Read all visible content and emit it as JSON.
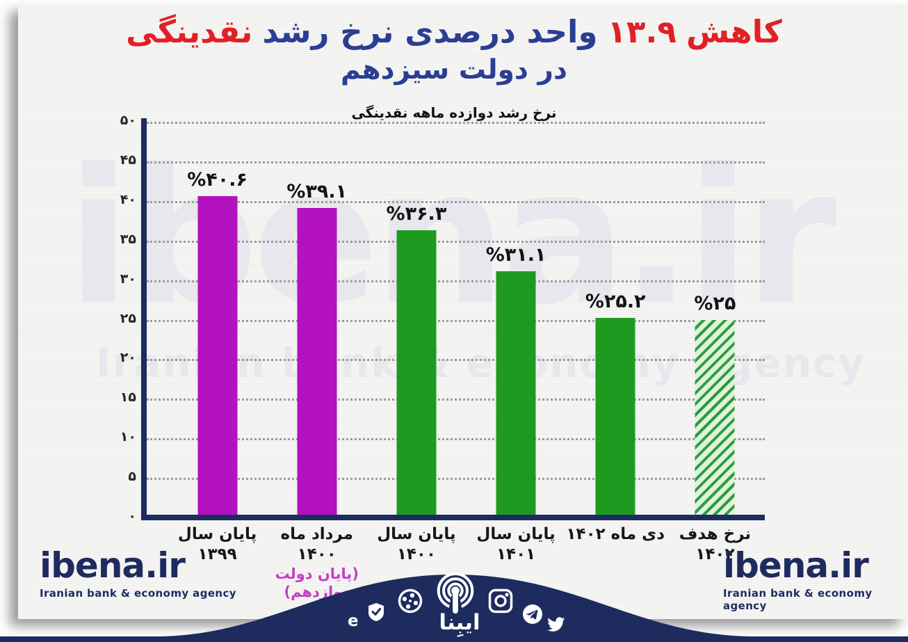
{
  "colors": {
    "title_red": "#e12026",
    "title_blue": "#2b3e94",
    "bar_magenta": "#b411c0",
    "bar_green": "#1f9a21",
    "hatch_stripe_green": "#2f9c3e",
    "hatch_bg_green": "#dff3dc",
    "brand_navy": "#1d2b5e",
    "sub_label_magenta": "#c33fc3",
    "gridline_gray": "#9b9b9b",
    "watermark_gray": "#e7e7ed"
  },
  "title": {
    "part1": "کاهش",
    "part2": "۱۳.۹",
    "part3": "واحد درصدی نرخ رشد",
    "part4": "نقدینگی",
    "line2": "در دولت سیزدهم"
  },
  "subtitle": "نرخ رشد دوازده ماهه نقدینگی",
  "watermark": {
    "line1": "ibena.ir",
    "line2": "Iranian bank & economy agency"
  },
  "footer": {
    "left_logo": "ibena.ir",
    "left_tagline": "Iranian bank & economy agency",
    "right_logo": "ibena.ir",
    "right_tagline": "Iranian bank & economy agency",
    "brand_fa": "ایبِنا",
    "social_icons": [
      "eitaa",
      "bale",
      "aparat",
      "ibena-broadcast",
      "instagram",
      "telegram",
      "twitter"
    ]
  },
  "chart_data": {
    "type": "bar",
    "title": "کاهش ۱۳.۹ واحد درصدی نرخ رشد نقدینگی در دولت سیزدهم",
    "subtitle": "نرخ رشد دوازده ماهه نقدینگی",
    "categories": [
      "پایان سال ۱۳۹۹",
      "مرداد ماه ۱۴۰۰",
      "پایان سال ۱۴۰۰",
      "پایان سال ۱۴۰۱",
      "دی ماه ۱۴۰۲",
      "نرخ هدف ۱۴۰۲"
    ],
    "category_subs": [
      "",
      "(پایان دولت دوازدهم)",
      "",
      "",
      "",
      ""
    ],
    "values": [
      40.6,
      39.1,
      36.3,
      31.1,
      25.2,
      25
    ],
    "value_labels": [
      "%۴۰.۶",
      "%۳۹.۱",
      "%۳۶.۳",
      "%۳۱.۱",
      "%۲۵.۲",
      "%۲۵"
    ],
    "bar_styles": [
      "solid-magenta",
      "solid-magenta",
      "solid-green",
      "solid-green",
      "solid-green",
      "hatched-green"
    ],
    "ylim": [
      0,
      50
    ],
    "yticks": [
      0,
      5,
      10,
      15,
      20,
      25,
      30,
      35,
      40,
      45,
      50
    ],
    "ytick_labels": [
      "۰",
      "۵",
      "۱۰",
      "۱۵",
      "۲۰",
      "۲۵",
      "۳۰",
      "۳۵",
      "۴۰",
      "۴۵",
      "۵۰"
    ],
    "grid": "dotted-horizontal",
    "legend": "none"
  }
}
